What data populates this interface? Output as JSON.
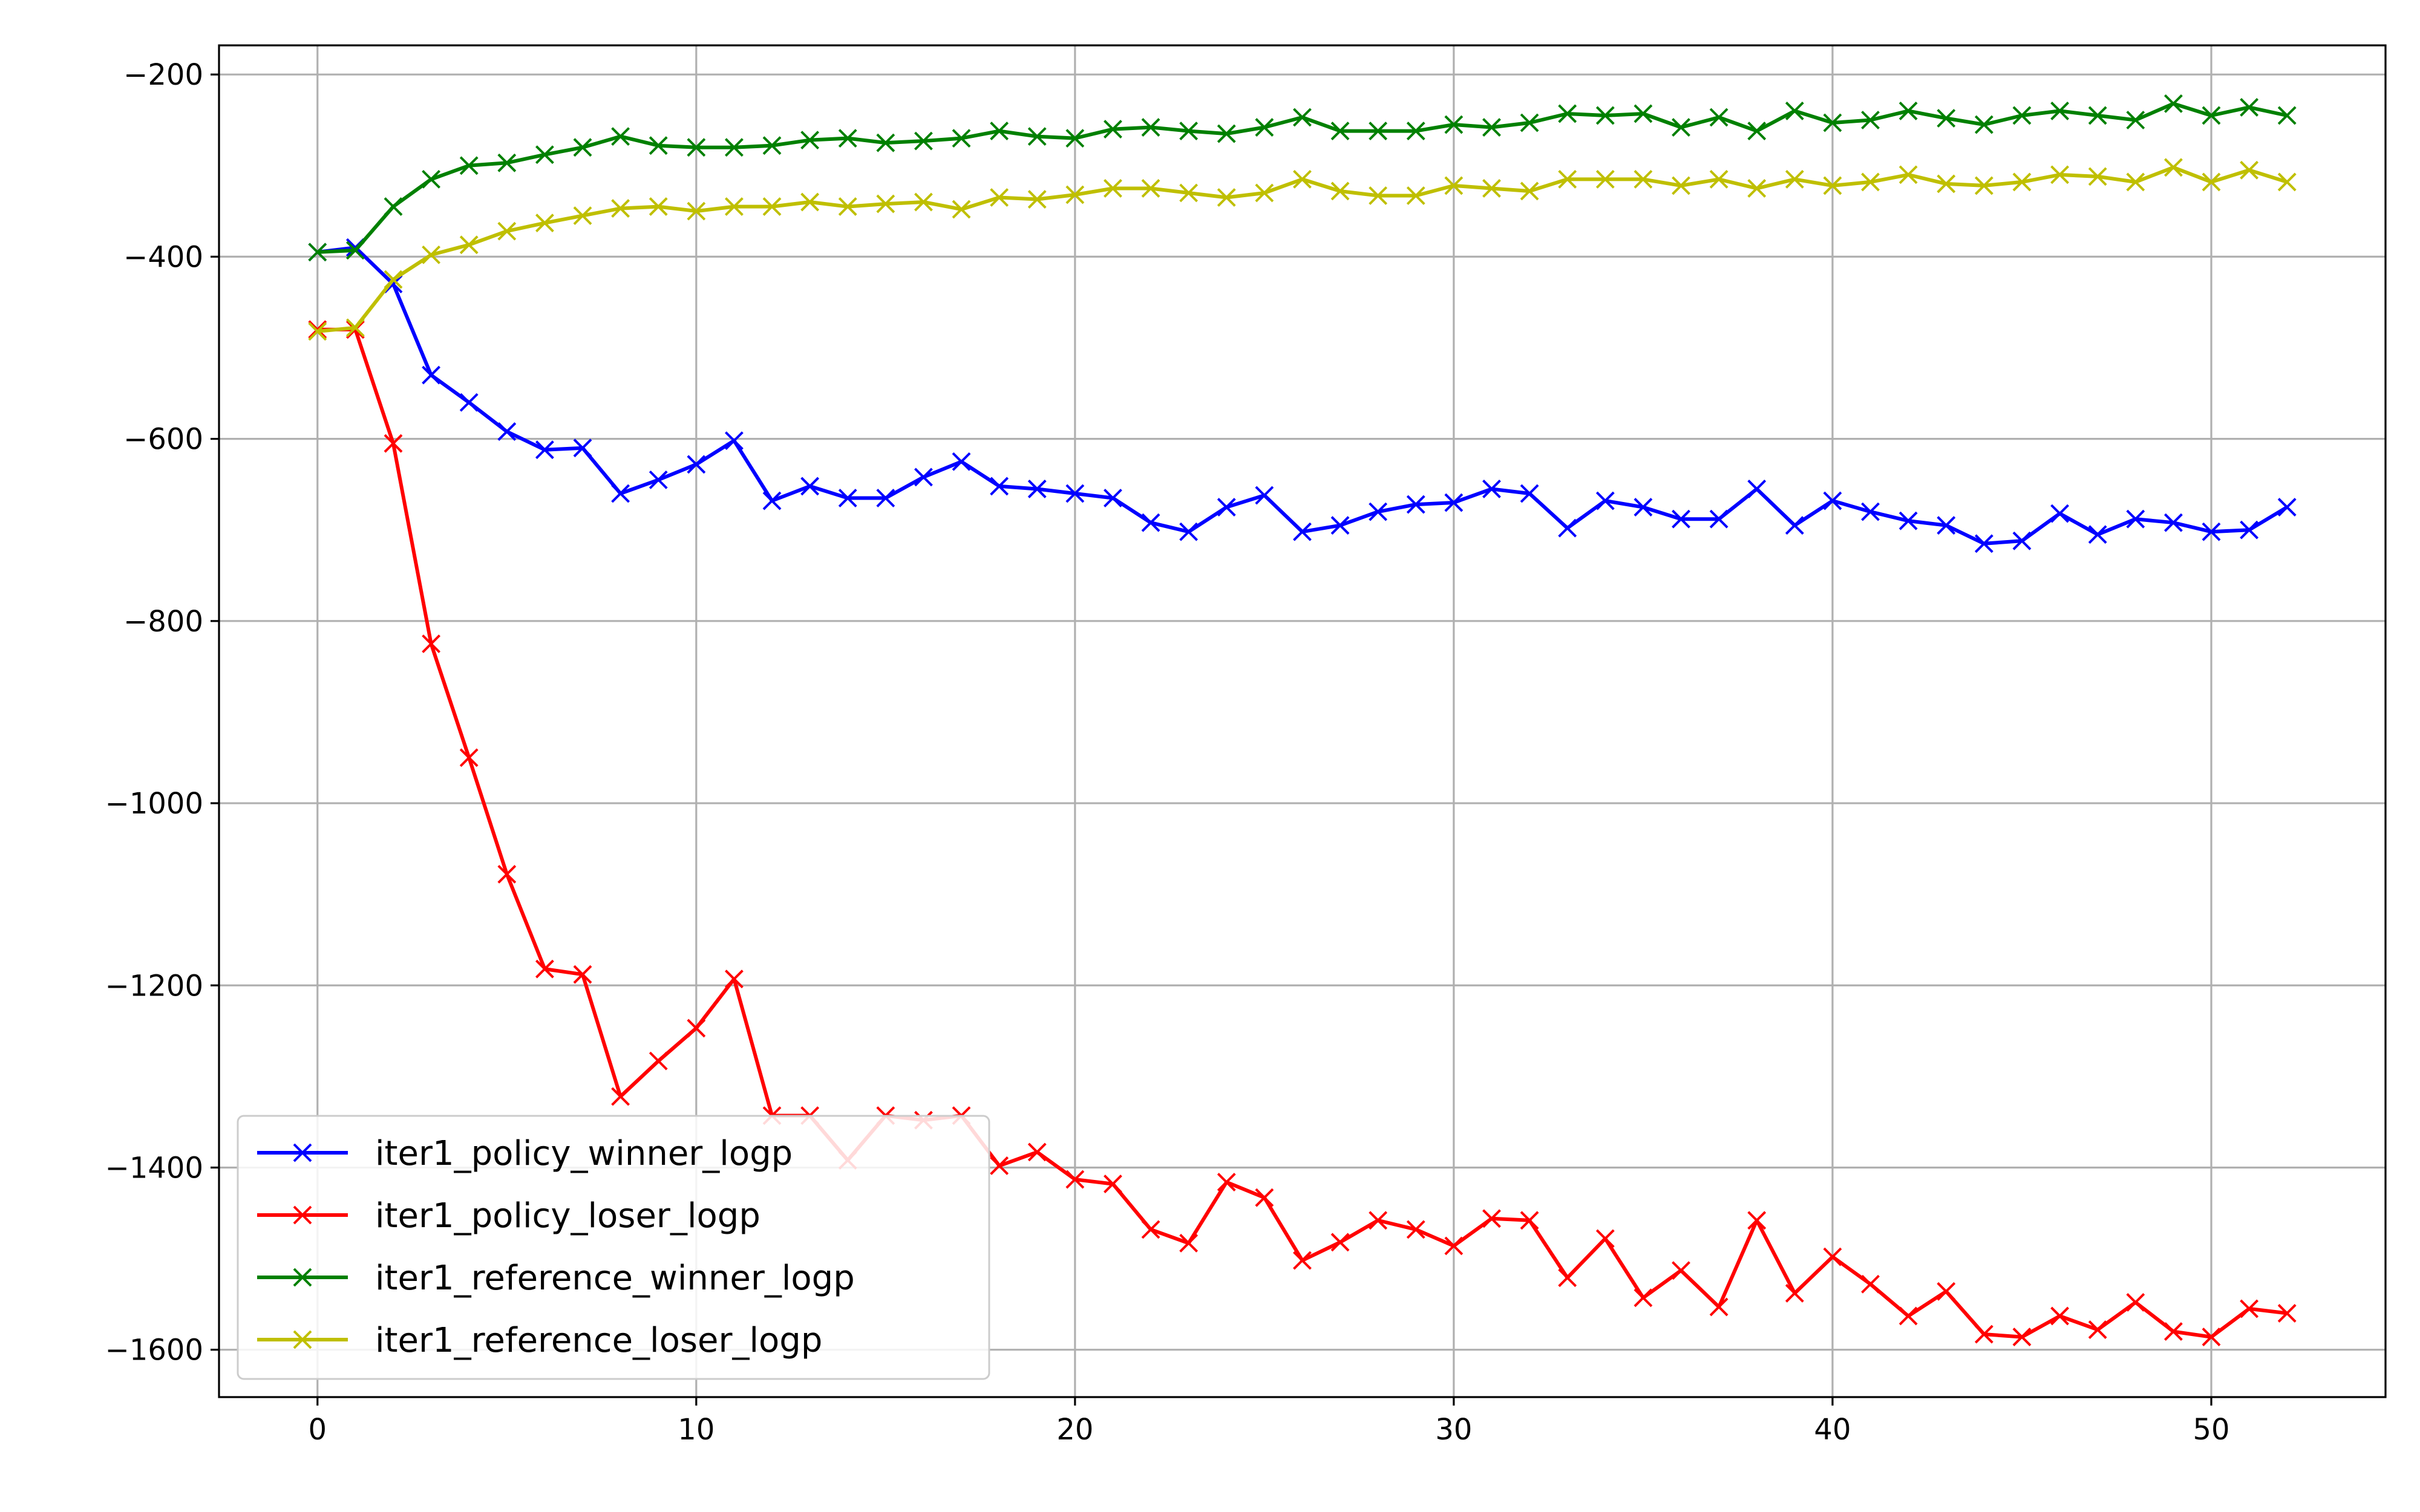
{
  "chart_data": {
    "type": "line",
    "title": "",
    "xlabel": "",
    "ylabel": "",
    "xlim": [
      -2.6,
      54.6
    ],
    "ylim": [
      -1652,
      -168
    ],
    "xticks": [
      0,
      10,
      20,
      30,
      40,
      50
    ],
    "yticks": [
      -200,
      -400,
      -600,
      -800,
      -1000,
      -1200,
      -1400,
      -1600
    ],
    "xtick_labels": [
      "0",
      "10",
      "20",
      "30",
      "40",
      "50"
    ],
    "ytick_labels": [
      "−200",
      "−400",
      "−600",
      "−800",
      "−1000",
      "−1200",
      "−1400",
      "−1600"
    ],
    "grid": true,
    "legend_position": "lower-left",
    "marker": "x",
    "x": [
      0,
      1,
      2,
      3,
      4,
      5,
      6,
      7,
      8,
      9,
      10,
      11,
      12,
      13,
      14,
      15,
      16,
      17,
      18,
      19,
      20,
      21,
      22,
      23,
      24,
      25,
      26,
      27,
      28,
      29,
      30,
      31,
      32,
      33,
      34,
      35,
      36,
      37,
      38,
      39,
      40,
      41,
      42,
      43,
      44,
      45,
      46,
      47,
      48,
      49,
      50,
      51,
      52
    ],
    "series": [
      {
        "name": "iter1_policy_winner_logp",
        "color": "#0000ff",
        "values": [
          -395,
          -390,
          -430,
          -530,
          -560,
          -592,
          -612,
          -610,
          -660,
          -645,
          -628,
          -602,
          -668,
          -652,
          -665,
          -665,
          -642,
          -625,
          -652,
          -655,
          -660,
          -665,
          -692,
          -702,
          -675,
          -662,
          -702,
          -695,
          -680,
          -672,
          -670,
          -655,
          -660,
          -698,
          -668,
          -675,
          -688,
          -688,
          -655,
          -695,
          -668,
          -680,
          -690,
          -695,
          -715,
          -712,
          -682,
          -705,
          -688,
          -692,
          -702,
          -700,
          -675
        ]
      },
      {
        "name": "iter1_policy_loser_logp",
        "color": "#ff0000",
        "values": [
          -480,
          -480,
          -605,
          -825,
          -950,
          -1078,
          -1182,
          -1188,
          -1322,
          -1283,
          -1247,
          -1193,
          -1343,
          -1343,
          -1392,
          -1343,
          -1348,
          -1343,
          -1398,
          -1383,
          -1413,
          -1418,
          -1468,
          -1483,
          -1416,
          -1433,
          -1502,
          -1482,
          -1458,
          -1468,
          -1486,
          -1456,
          -1458,
          -1521,
          -1478,
          -1543,
          -1513,
          -1553,
          -1458,
          -1538,
          -1498,
          -1528,
          -1563,
          -1536,
          -1583,
          -1586,
          -1563,
          -1578,
          -1548,
          -1580,
          -1586,
          -1555,
          -1560
        ]
      },
      {
        "name": "iter1_reference_winner_logp",
        "color": "#008000",
        "values": [
          -395,
          -393,
          -345,
          -315,
          -300,
          -297,
          -288,
          -280,
          -268,
          -278,
          -280,
          -280,
          -278,
          -272,
          -270,
          -275,
          -273,
          -270,
          -262,
          -268,
          -270,
          -260,
          -258,
          -262,
          -265,
          -258,
          -247,
          -262,
          -262,
          -262,
          -255,
          -258,
          -253,
          -243,
          -245,
          -243,
          -258,
          -247,
          -262,
          -240,
          -253,
          -250,
          -240,
          -248,
          -255,
          -245,
          -240,
          -245,
          -250,
          -232,
          -245,
          -236,
          -245
        ]
      },
      {
        "name": "iter1_reference_loser_logp",
        "color": "#bfbf00",
        "values": [
          -482,
          -478,
          -425,
          -398,
          -387,
          -372,
          -363,
          -355,
          -347,
          -345,
          -350,
          -345,
          -345,
          -340,
          -345,
          -342,
          -340,
          -348,
          -335,
          -337,
          -332,
          -325,
          -325,
          -330,
          -335,
          -330,
          -315,
          -328,
          -333,
          -333,
          -322,
          -325,
          -328,
          -315,
          -315,
          -315,
          -322,
          -315,
          -325,
          -315,
          -322,
          -318,
          -310,
          -320,
          -322,
          -318,
          -310,
          -312,
          -318,
          -302,
          -318,
          -305,
          -318
        ]
      }
    ]
  }
}
